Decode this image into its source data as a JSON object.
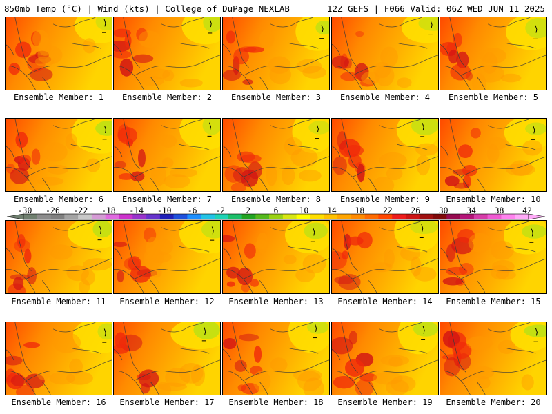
{
  "header": {
    "left": "850mb Temp (°C) | Wind (kts) | College of DuPage NEXLAB",
    "right": "12Z GEFS | F066 Valid: 06Z WED JUN 11 2025"
  },
  "colorbar": {
    "labels": [
      "-30",
      "-26",
      "-22",
      "-18",
      "-14",
      "-10",
      "-6",
      "-2",
      "2",
      "6",
      "10",
      "14",
      "18",
      "22",
      "26",
      "30",
      "34",
      "38",
      "42"
    ],
    "colors": [
      "#6f7f6f",
      "#8c8c8c",
      "#808080",
      "#a3a3a3",
      "#c8c8c8",
      "#d59bd5",
      "#e06ae0",
      "#cc33cc",
      "#9933cc",
      "#6633cc",
      "#1f1fb8",
      "#1e50dc",
      "#1e90ff",
      "#22c3e6",
      "#1fd3b5",
      "#1cbf6a",
      "#22a422",
      "#55b91c",
      "#9ad214",
      "#d7e614",
      "#ffff00",
      "#ffde00",
      "#ffc100",
      "#ffa500",
      "#ff8a00",
      "#ff6a00",
      "#ff4600",
      "#ee1c1c",
      "#cc1414",
      "#a01010",
      "#800a0a",
      "#960a50",
      "#b41478",
      "#d63ca8",
      "#f05ad2",
      "#ff82ee",
      "#ffaaf8"
    ]
  },
  "panels": [
    {
      "label": "Ensemble Member: 1"
    },
    {
      "label": "Ensemble Member: 2"
    },
    {
      "label": "Ensemble Member: 3"
    },
    {
      "label": "Ensemble Member: 4"
    },
    {
      "label": "Ensemble Member: 5"
    },
    {
      "label": "Ensemble Member: 6"
    },
    {
      "label": "Ensemble Member: 7"
    },
    {
      "label": "Ensemble Member: 8"
    },
    {
      "label": "Ensemble Member: 9"
    },
    {
      "label": "Ensemble Member: 10"
    },
    {
      "label": "Ensemble Member: 11"
    },
    {
      "label": "Ensemble Member: 12"
    },
    {
      "label": "Ensemble Member: 13"
    },
    {
      "label": "Ensemble Member: 14"
    },
    {
      "label": "Ensemble Member: 15"
    },
    {
      "label": "Ensemble Member: 16"
    },
    {
      "label": "Ensemble Member: 17"
    },
    {
      "label": "Ensemble Member: 18"
    },
    {
      "label": "Ensemble Member: 19"
    },
    {
      "label": "Ensemble Member: 20"
    }
  ]
}
